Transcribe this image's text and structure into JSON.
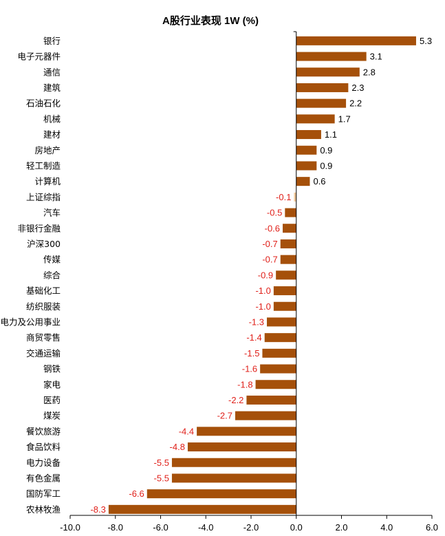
{
  "chart_data": {
    "type": "bar",
    "orientation": "horizontal",
    "title": "A股行业表现 1W (%)",
    "categories": [
      "银行",
      "电子元器件",
      "通信",
      "建筑",
      "石油石化",
      "机械",
      "建材",
      "房地产",
      "轻工制造",
      "计算机",
      "上证综指",
      "汽车",
      "非银行金融",
      "沪深300",
      "传媒",
      "综合",
      "基础化工",
      "纺织服装",
      "电力及公用事业",
      "商贸零售",
      "交通运输",
      "钢铁",
      "家电",
      "医药",
      "煤炭",
      "餐饮旅游",
      "食品饮料",
      "电力设备",
      "有色金属",
      "国防军工",
      "农林牧渔"
    ],
    "values": [
      5.3,
      3.1,
      2.8,
      2.3,
      2.2,
      1.7,
      1.1,
      0.9,
      0.9,
      0.6,
      -0.1,
      -0.5,
      -0.6,
      -0.7,
      -0.7,
      -0.9,
      -1.0,
      -1.0,
      -1.3,
      -1.4,
      -1.5,
      -1.6,
      -1.8,
      -2.2,
      -2.7,
      -4.4,
      -4.8,
      -5.5,
      -5.5,
      -6.6,
      -8.3
    ],
    "value_labels": [
      "5.3",
      "3.1",
      "2.8",
      "2.3",
      "2.2",
      "1.7",
      "1.1",
      "0.9",
      "0.9",
      "0.6",
      "-0.1",
      "-0.5",
      "-0.6",
      "-0.7",
      "-0.7",
      "-0.9",
      "-1.0",
      "-1.0",
      "-1.3",
      "-1.4",
      "-1.5",
      "-1.6",
      "-1.8",
      "-2.2",
      "-2.7",
      "-4.4",
      "-4.8",
      "-5.5",
      "-5.5",
      "-6.6",
      "-8.3"
    ],
    "highlight_category": "上证综指",
    "xlim": [
      -10.0,
      6.0
    ],
    "x_ticks": [
      -10.0,
      -8.0,
      -6.0,
      -4.0,
      -2.0,
      0.0,
      2.0,
      4.0,
      6.0
    ],
    "x_tick_labels": [
      "-10.0",
      "-8.0",
      "-6.0",
      "-4.0",
      "-2.0",
      "0.0",
      "2.0",
      "4.0",
      "6.0"
    ],
    "grid": false,
    "legend": "none",
    "colors": {
      "bar": "#A5500A",
      "highlight_bar": "#F2C89A",
      "positive_label": "#000000",
      "negative_label": "#E0201A",
      "negative_tick": "#E0201A",
      "positive_tick": "#000000",
      "axis": "#000000"
    }
  }
}
